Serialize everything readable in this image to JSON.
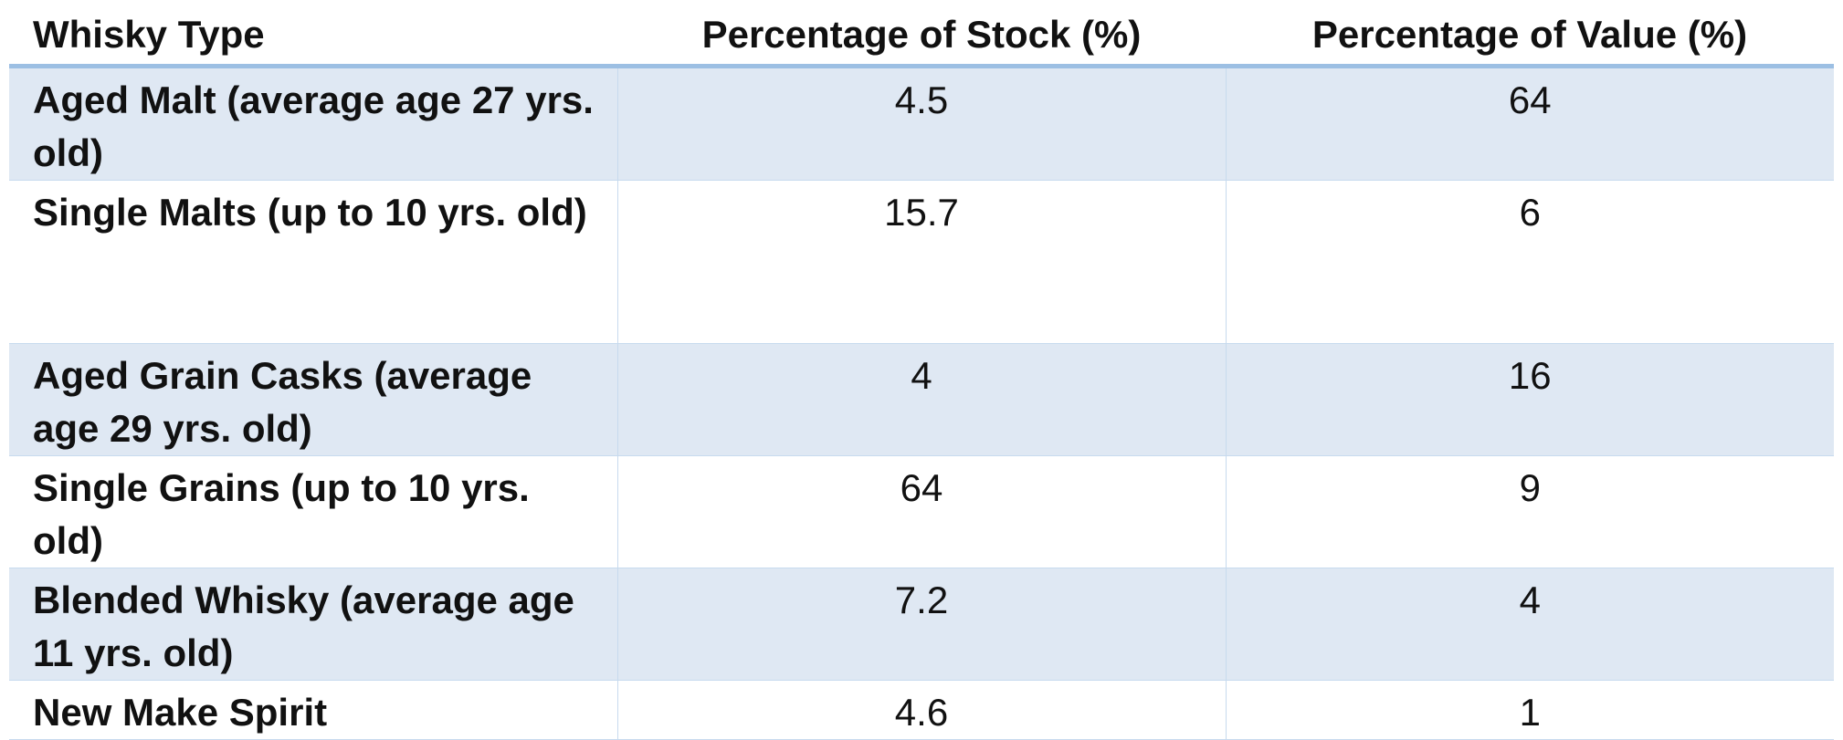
{
  "table": {
    "headers": [
      "Whisky Type",
      "Percentage of Stock (%)",
      "Percentage of Value (%)"
    ],
    "rows": [
      {
        "type": "Aged Malt (average age 27 yrs. old)",
        "stock": "4.5",
        "value": "64"
      },
      {
        "type": "Single Malts (up to 10 yrs. old)",
        "stock": "15.7",
        "value": "6"
      },
      {
        "type": "Aged Grain Casks (average age 29 yrs. old)",
        "stock": "4",
        "value": "16"
      },
      {
        "type": "Single Grains (up to 10 yrs. old)",
        "stock": "64",
        "value": "9"
      },
      {
        "type": "Blended Whisky (average age 11 yrs. old)",
        "stock": "7.2",
        "value": "4"
      },
      {
        "type": "New Make Spirit",
        "stock": "4.6",
        "value": "1"
      }
    ]
  },
  "colors": {
    "header_rule": "#9cbfe3",
    "shaded_row": "#dfe8f3",
    "grid_line": "#c7daee"
  }
}
